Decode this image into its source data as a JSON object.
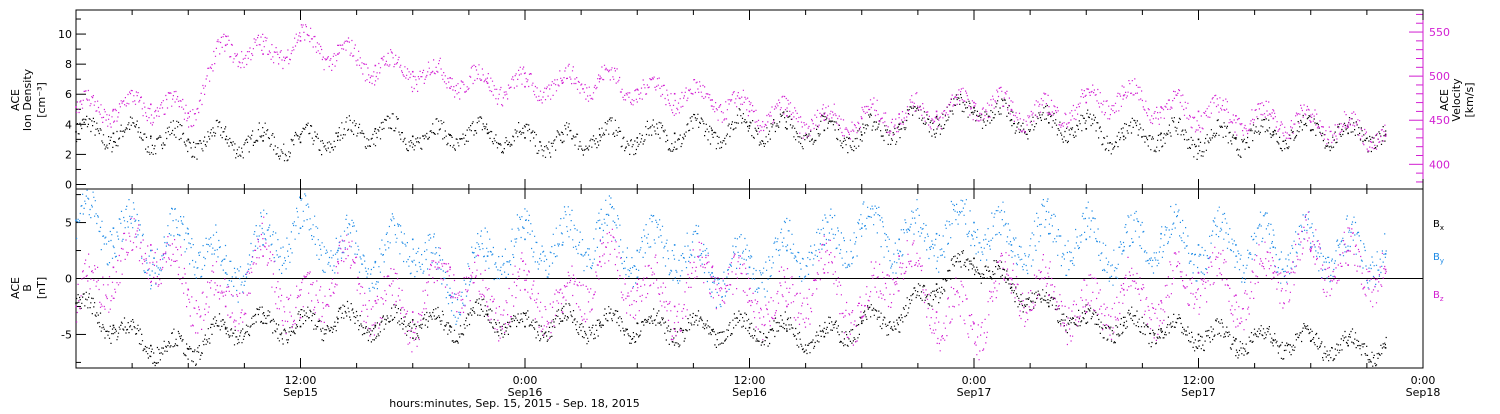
{
  "figure": {
    "xaxis_title": "hours:minutes, Sep. 15, 2015 - Sep. 18, 2015",
    "x_ticks": [
      {
        "t": 12,
        "line1": "12:00",
        "line2": "Sep15"
      },
      {
        "t": 24,
        "line1": "0:00",
        "line2": "Sep16"
      },
      {
        "t": 36,
        "line1": "12:00",
        "line2": "Sep16"
      },
      {
        "t": 48,
        "line1": "0:00",
        "line2": "Sep17"
      },
      {
        "t": 60,
        "line1": "12:00",
        "line2": "Sep17"
      },
      {
        "t": 72,
        "line1": "0:00",
        "line2": "Sep18"
      }
    ]
  },
  "colors": {
    "black": "#000000",
    "magenta": "#d21ed2",
    "blue": "#1e8be6"
  },
  "chart_data": [
    {
      "type": "scatter",
      "title": "",
      "ylabel_left": [
        "ACE",
        "Ion Density",
        "[cm⁻³]"
      ],
      "ylabel_right": [
        "ACE",
        "Velocity",
        "[km/s]"
      ],
      "x_range_hours": [
        0,
        72
      ],
      "y_left_range": [
        -0.3,
        11.6
      ],
      "y_left_ticks": [
        "0",
        "2",
        "4",
        "6",
        "8",
        "10"
      ],
      "y_right_range": [
        372,
        575
      ],
      "y_right_ticks": [
        "400",
        "450",
        "500",
        "550"
      ],
      "series": [
        {
          "axis": "left",
          "color": "black",
          "x": [
            0,
            2,
            4,
            6,
            8,
            10,
            12,
            14,
            16,
            18,
            20,
            22,
            24,
            26,
            28,
            30,
            32,
            34,
            36,
            38,
            40,
            42,
            44,
            46,
            48,
            50,
            52,
            54,
            56,
            58,
            60,
            62,
            64,
            66,
            68,
            70
          ],
          "y": [
            3.5,
            3.4,
            3.2,
            3.0,
            3.0,
            2.9,
            2.8,
            3.2,
            3.7,
            3.2,
            3.3,
            3.4,
            3.1,
            2.8,
            3.3,
            3.1,
            3.4,
            3.6,
            3.9,
            3.7,
            3.6,
            3.3,
            4.0,
            4.5,
            5.1,
            4.3,
            4.1,
            3.7,
            3.2,
            3.4,
            3.0,
            3.1,
            3.5,
            3.6,
            3.4,
            3.3
          ]
        },
        {
          "axis": "right",
          "color": "magenta",
          "x": [
            0,
            2,
            4,
            6,
            8,
            10,
            12,
            14,
            16,
            18,
            20,
            22,
            24,
            26,
            28,
            30,
            32,
            34,
            36,
            38,
            40,
            42,
            44,
            46,
            48,
            50,
            52,
            54,
            56,
            58,
            60,
            62,
            64,
            66,
            68,
            70
          ],
          "y": [
            465,
            462,
            468,
            458,
            535,
            525,
            540,
            525,
            512,
            505,
            498,
            492,
            488,
            492,
            497,
            485,
            480,
            473,
            460,
            455,
            450,
            452,
            457,
            460,
            470,
            462,
            457,
            470,
            478,
            465,
            460,
            455,
            452,
            448,
            442,
            432
          ]
        }
      ]
    },
    {
      "type": "scatter",
      "title": "",
      "ylabel_left": [
        "ACE",
        "B",
        "[nT]"
      ],
      "x_range_hours": [
        0,
        72
      ],
      "y_range": [
        -8,
        8
      ],
      "y_ticks": [
        "-5",
        "0",
        "5"
      ],
      "zero_line": true,
      "legend": [
        {
          "label": "B",
          "sub": "x",
          "color": "black"
        },
        {
          "label": "B",
          "sub": "y",
          "color": "blue"
        },
        {
          "label": "B",
          "sub": "z",
          "color": "magenta"
        }
      ],
      "series": [
        {
          "name": "Bx",
          "color": "black",
          "x": [
            0,
            2,
            4,
            6,
            8,
            10,
            12,
            14,
            16,
            18,
            20,
            22,
            24,
            26,
            28,
            30,
            32,
            34,
            36,
            38,
            40,
            42,
            44,
            46,
            48,
            50,
            52,
            54,
            56,
            58,
            60,
            62,
            64,
            66,
            68,
            70
          ],
          "y": [
            -2.2,
            -4.2,
            -6.0,
            -6.3,
            -4.5,
            -4.0,
            -4.3,
            -3.6,
            -4.2,
            -3.7,
            -4.3,
            -3.2,
            -4.3,
            -3.8,
            -4.2,
            -4.0,
            -4.5,
            -4.6,
            -4.4,
            -4.7,
            -5.2,
            -4.0,
            -3.5,
            -0.5,
            1.8,
            -0.8,
            -2.5,
            -4.0,
            -4.2,
            -4.5,
            -5.0,
            -5.4,
            -5.5,
            -5.6,
            -6.0,
            -6.2
          ]
        },
        {
          "name": "By",
          "color": "blue",
          "x": [
            0,
            2,
            4,
            6,
            8,
            10,
            12,
            14,
            16,
            18,
            20,
            22,
            24,
            26,
            28,
            30,
            32,
            34,
            36,
            38,
            40,
            42,
            44,
            46,
            48,
            50,
            52,
            54,
            56,
            58,
            60,
            62,
            64,
            66,
            68,
            70
          ],
          "y": [
            5.2,
            4.5,
            2.5,
            4.0,
            0.5,
            3.0,
            4.5,
            2.5,
            1.5,
            3.5,
            -1.5,
            2.0,
            3.5,
            3.0,
            4.5,
            2.5,
            3.0,
            0.5,
            1.0,
            2.5,
            3.0,
            4.5,
            3.5,
            4.0,
            5.0,
            3.0,
            4.0,
            3.5,
            2.5,
            4.0,
            3.0,
            3.0,
            2.8,
            2.8,
            2.5,
            2.2
          ]
        },
        {
          "name": "Bz",
          "color": "magenta",
          "x": [
            0,
            2,
            4,
            6,
            8,
            10,
            12,
            14,
            16,
            18,
            20,
            22,
            24,
            26,
            28,
            30,
            32,
            34,
            36,
            38,
            40,
            42,
            44,
            46,
            48,
            50,
            52,
            54,
            56,
            58,
            60,
            62,
            64,
            66,
            68,
            70
          ],
          "y": [
            -2.5,
            1.0,
            3.0,
            -1.0,
            -2.5,
            2.0,
            -3.5,
            1.5,
            -2.0,
            -3.0,
            1.0,
            -2.5,
            -1.0,
            -3.0,
            1.5,
            -0.5,
            -2.5,
            1.0,
            -2.0,
            -2.5,
            0.5,
            -3.5,
            2.0,
            -3.0,
            -4.0,
            0.0,
            -1.5,
            -3.0,
            -1.0,
            -2.0,
            0.5,
            -1.5,
            0.5,
            2.5,
            1.2,
            0.8
          ]
        }
      ]
    }
  ]
}
